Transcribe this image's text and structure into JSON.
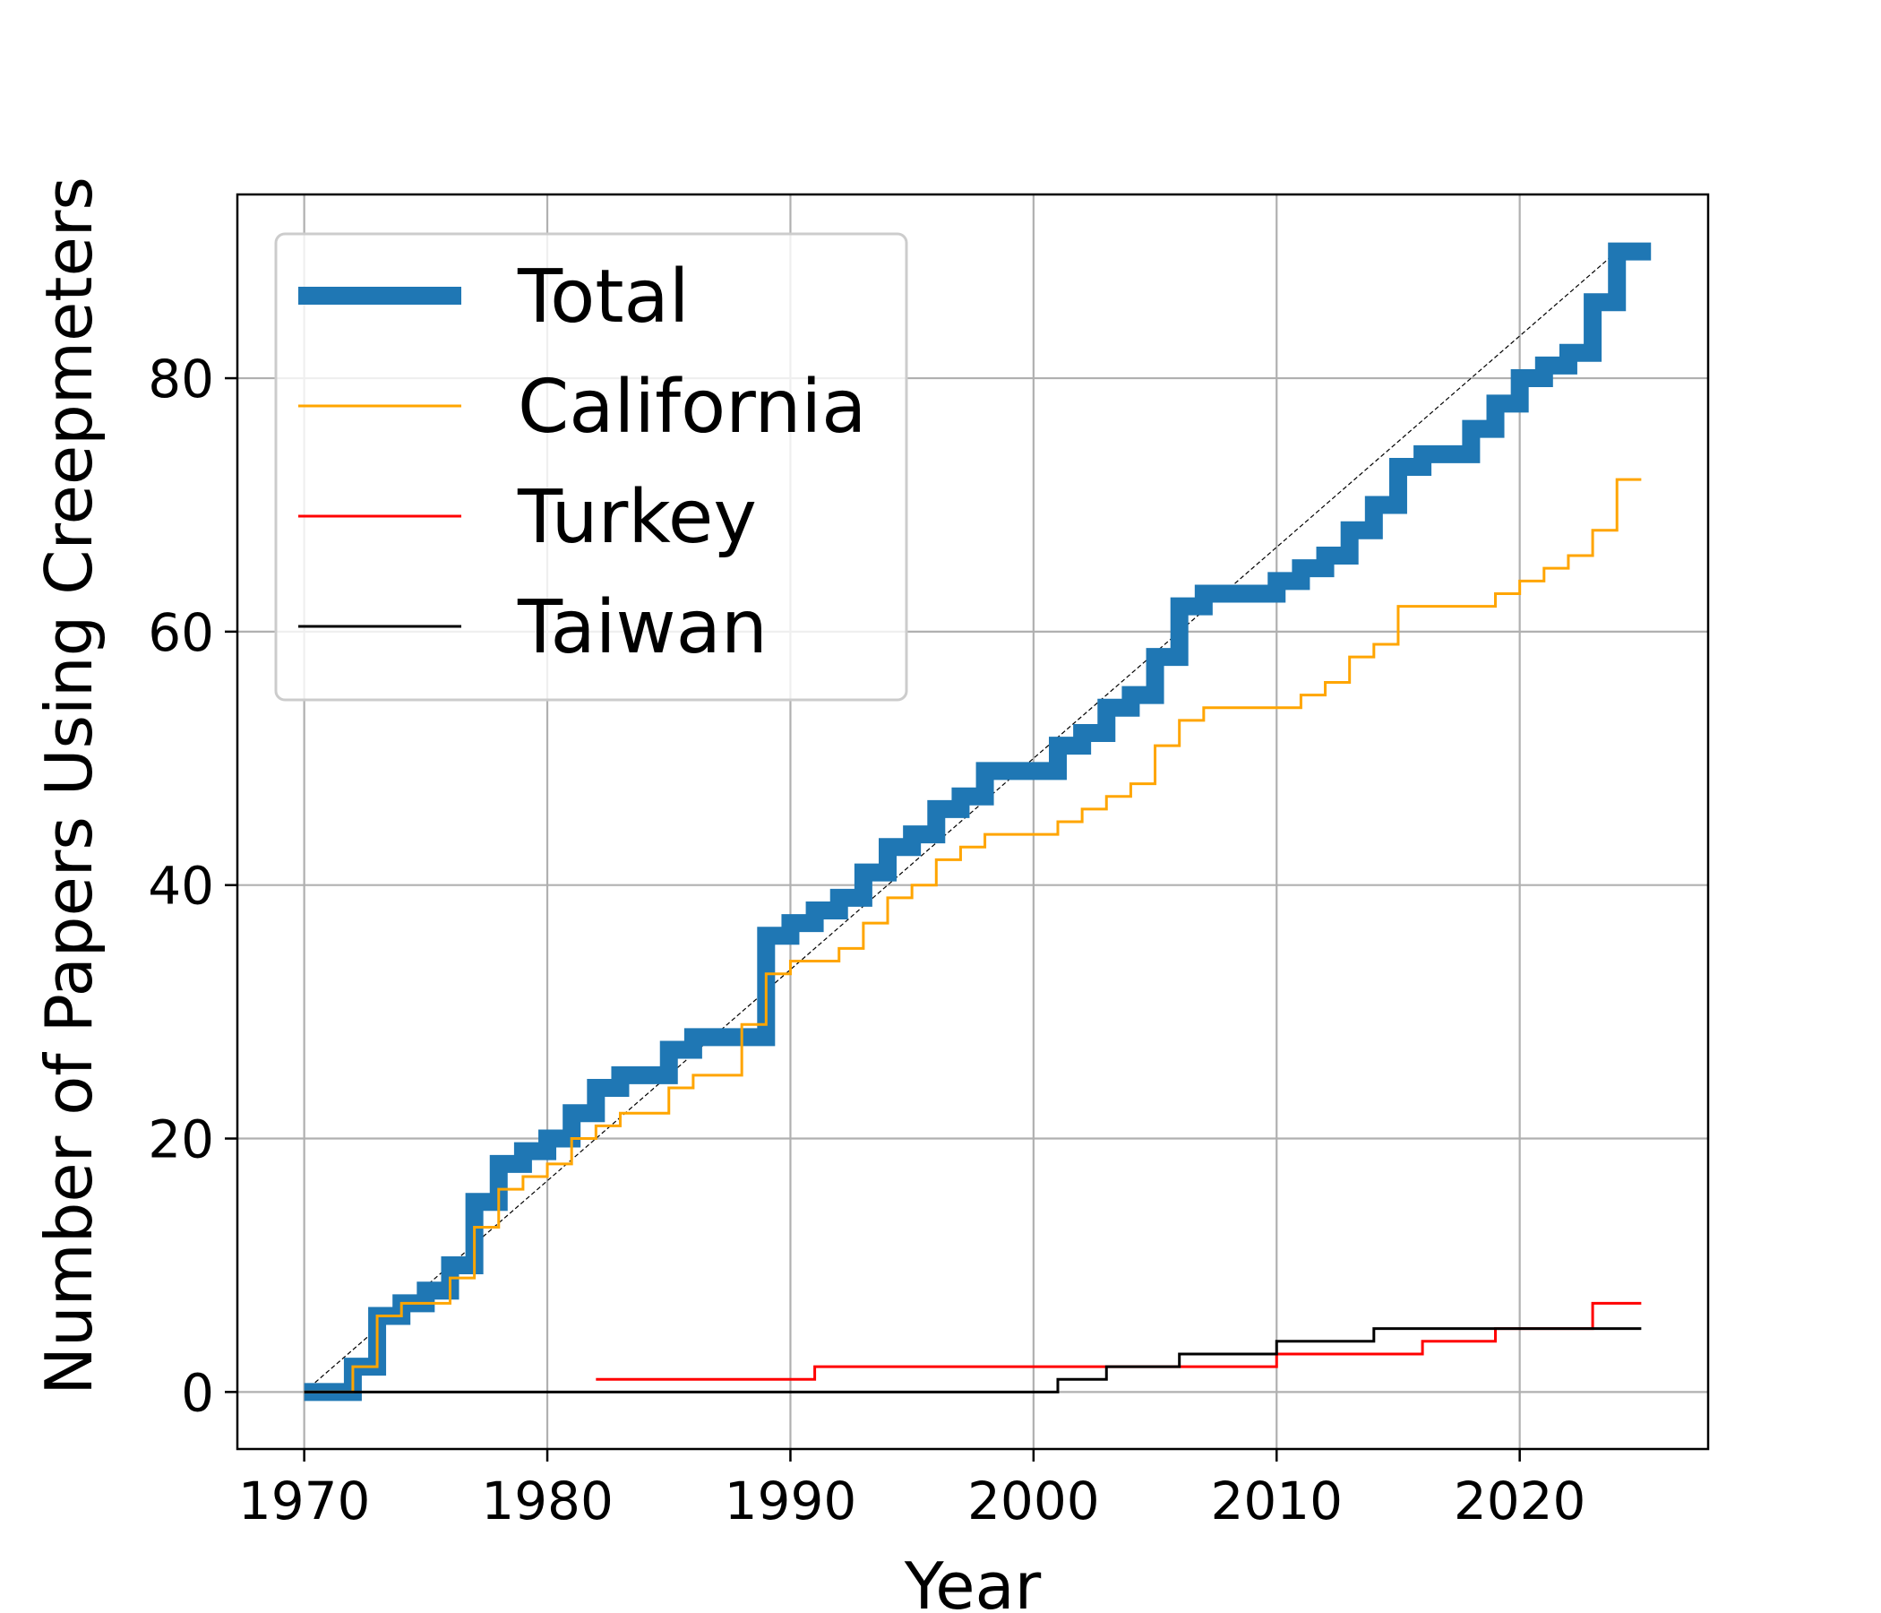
{
  "chart_data": {
    "type": "line",
    "title": "",
    "xlabel": "Year",
    "ylabel": "Number of Papers Using Creepmeters",
    "xlim": [
      1967.25,
      2027.75
    ],
    "ylim": [
      -4.5,
      94.5
    ],
    "xticks": [
      1970,
      1980,
      1990,
      2000,
      2010,
      2020
    ],
    "yticks": [
      0,
      20,
      40,
      60,
      80
    ],
    "grid": true,
    "legend_position": "top-left",
    "reference_line": {
      "style": "dashed",
      "color": "#000000",
      "from": [
        1970,
        0
      ],
      "to": [
        2024,
        90
      ]
    },
    "series": [
      {
        "name": "Total",
        "color": "#1f77b4",
        "line": "thick",
        "x": [
          1970,
          1972,
          1973,
          1974,
          1975,
          1976,
          1977,
          1978,
          1979,
          1980,
          1981,
          1982,
          1983,
          1985,
          1986,
          1989,
          1990,
          1991,
          1992,
          1993,
          1994,
          1995,
          1996,
          1997,
          1998,
          2001,
          2002,
          2003,
          2004,
          2005,
          2006,
          2007,
          2010,
          2011,
          2012,
          2013,
          2014,
          2015,
          2016,
          2018,
          2019,
          2020,
          2021,
          2022,
          2023,
          2024,
          2025.4
        ],
        "y": [
          0,
          2,
          6,
          7,
          8,
          10,
          15,
          18,
          19,
          20,
          22,
          24,
          25,
          27,
          28,
          36,
          37,
          38,
          39,
          41,
          43,
          44,
          46,
          47,
          49,
          51,
          52,
          54,
          55,
          58,
          62,
          63,
          64,
          65,
          66,
          68,
          70,
          73,
          74,
          76,
          78,
          80,
          81,
          82,
          86,
          90,
          90
        ]
      },
      {
        "name": "California",
        "color": "#ffa500",
        "line": "thin",
        "x": [
          1970,
          1972,
          1973,
          1974,
          1976,
          1977,
          1978,
          1979,
          1980,
          1981,
          1982,
          1983,
          1985,
          1986,
          1988,
          1989,
          1990,
          1992,
          1993,
          1994,
          1995,
          1996,
          1997,
          1998,
          2001,
          2002,
          2003,
          2004,
          2005,
          2006,
          2007,
          2011,
          2012,
          2013,
          2014,
          2015,
          2019,
          2020,
          2021,
          2022,
          2023,
          2024,
          2025
        ],
        "y": [
          0,
          2,
          6,
          7,
          9,
          13,
          16,
          17,
          18,
          20,
          21,
          22,
          24,
          25,
          29,
          33,
          34,
          35,
          37,
          39,
          40,
          42,
          43,
          44,
          45,
          46,
          47,
          48,
          51,
          53,
          54,
          55,
          56,
          58,
          59,
          62,
          63,
          64,
          65,
          66,
          68,
          72,
          72
        ]
      },
      {
        "name": "Turkey",
        "color": "#ff0000",
        "line": "thin",
        "x": [
          1982,
          1991,
          2010,
          2016,
          2019,
          2023,
          2025
        ],
        "y": [
          1,
          2,
          3,
          4,
          5,
          7,
          7
        ]
      },
      {
        "name": "Taiwan",
        "color": "#000000",
        "line": "thin",
        "x": [
          1970,
          2001,
          2003,
          2006,
          2010,
          2014,
          2025
        ],
        "y": [
          0,
          1,
          2,
          3,
          4,
          5,
          5
        ]
      }
    ]
  }
}
